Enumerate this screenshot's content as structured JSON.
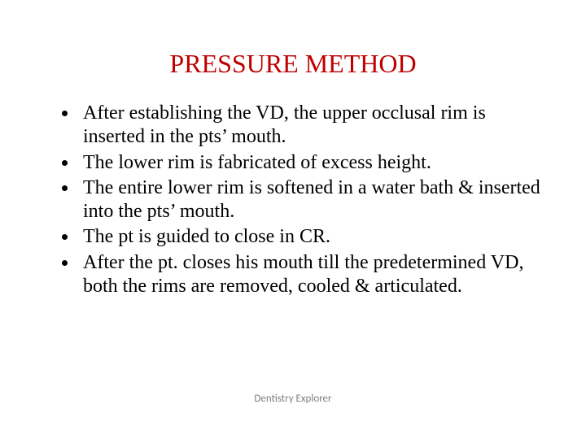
{
  "title": {
    "text": "PRESSURE METHOD",
    "color": "#c00000"
  },
  "bullets": [
    "After establishing the VD, the upper occlusal rim is inserted in the pts’ mouth.",
    "The lower rim is fabricated of excess height.",
    "The entire lower rim is softened in a water bath & inserted into the pts’ mouth.",
    "The pt is guided to close in CR.",
    "After the pt. closes his mouth till the predetermined VD, both the rims are removed, cooled & articulated."
  ],
  "footer": {
    "text": "Dentistry Explorer",
    "color": "#7f7f7f"
  },
  "body_color": "#000000",
  "background_color": "#ffffff"
}
